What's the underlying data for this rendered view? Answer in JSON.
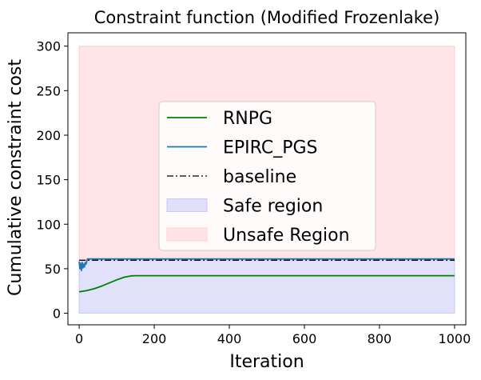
{
  "chart_data": {
    "type": "line",
    "title": "Constraint function (Modified Frozenlake)",
    "xlabel": "Iteration",
    "ylabel": "Cumulative constraint cost",
    "xlim": [
      -30,
      1030
    ],
    "ylim": [
      -13,
      315
    ],
    "xticks": [
      0,
      200,
      400,
      600,
      800,
      1000
    ],
    "yticks": [
      0,
      50,
      100,
      150,
      200,
      250,
      300
    ],
    "grid": false,
    "legend_position": "center",
    "regions": [
      {
        "name": "Safe region",
        "x": [
          0,
          1000
        ],
        "y": [
          0,
          60
        ],
        "color": "#c9c9f8"
      },
      {
        "name": "Unsafe Region",
        "x": [
          0,
          1000
        ],
        "y": [
          60,
          300
        ],
        "color": "#ffcfd3"
      }
    ],
    "series": [
      {
        "name": "RNPG",
        "color": "#008000",
        "style": "solid",
        "x": [
          0,
          20,
          40,
          60,
          80,
          100,
          120,
          140,
          150,
          200,
          400,
          600,
          800,
          1000
        ],
        "y": [
          24,
          25.5,
          27.5,
          30.5,
          34,
          37.5,
          40.5,
          42,
          42.2,
          42.2,
          42.2,
          42.2,
          42.2,
          42.2
        ]
      },
      {
        "name": "EPIRC_PGS",
        "color": "#1f77b4",
        "style": "solid",
        "x": [
          0,
          2,
          4,
          6,
          8,
          10,
          12,
          14,
          16,
          18,
          20,
          22,
          100,
          400,
          700,
          1000
        ],
        "y": [
          58,
          50,
          56,
          48,
          57,
          51,
          55,
          52,
          57,
          55,
          58,
          61,
          61,
          61,
          61,
          61
        ]
      },
      {
        "name": "baseline",
        "color": "#000000",
        "style": "dashdot",
        "x": [
          0,
          1000
        ],
        "y": [
          59.5,
          59.5
        ]
      }
    ]
  }
}
